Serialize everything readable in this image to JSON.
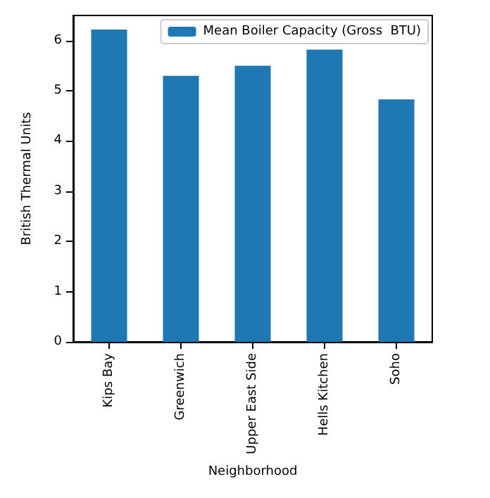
{
  "chart_data": {
    "type": "bar",
    "xlabel": "Neighborhood",
    "ylabel": "British Thermal Units",
    "categories": [
      "Kips Bay",
      "Greenwich",
      "Upper East Side",
      "Hells Kitchen",
      "Soho"
    ],
    "series": [
      {
        "name": "Mean Boiler Capacity (Gross  BTU)",
        "color": "#1f77b4",
        "values": [
          6.22,
          5.3,
          5.5,
          5.82,
          4.83
        ]
      }
    ],
    "ylim": [
      0,
      6.5
    ],
    "yticks": [
      0,
      1,
      2,
      3,
      4,
      5,
      6
    ],
    "legend": "top right",
    "grid": false
  }
}
